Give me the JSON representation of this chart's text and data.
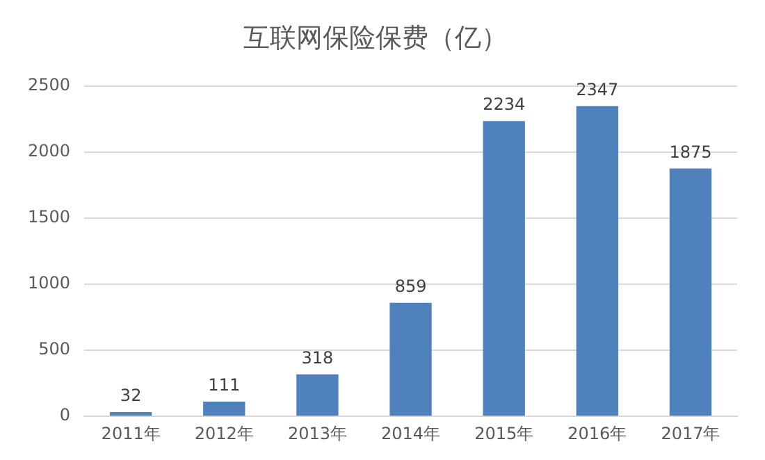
{
  "chart_data": {
    "type": "bar",
    "title": "互联网保险保费（亿）",
    "categories": [
      "2011年",
      "2012年",
      "2013年",
      "2014年",
      "2015年",
      "2016年",
      "2017年"
    ],
    "values": [
      32,
      111,
      318,
      859,
      2234,
      2347,
      1875
    ],
    "color": "#4f81bd",
    "ylim": [
      0,
      2500
    ],
    "yticks": [
      0,
      500,
      1000,
      1500,
      2000,
      2500
    ],
    "grid": "y",
    "legend": false,
    "data_labels": true
  }
}
